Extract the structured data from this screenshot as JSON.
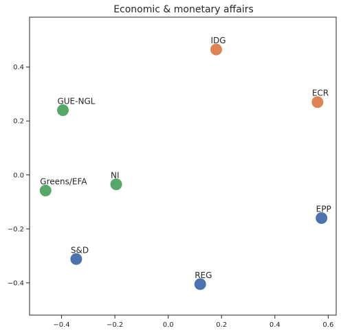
{
  "chart_data": {
    "type": "scatter",
    "title": "Economic & monetary affairs",
    "xlabel": "",
    "ylabel": "",
    "xlim": [
      -0.52,
      0.63
    ],
    "ylim": [
      -0.52,
      0.585
    ],
    "grid": false,
    "legend": "none",
    "xticks": [
      -0.4,
      -0.2,
      0.0,
      0.2,
      0.4,
      0.6
    ],
    "xtick_labels": [
      "−0.4",
      "−0.2",
      "0.0",
      "0.2",
      "0.4",
      "0.6"
    ],
    "yticks": [
      -0.4,
      -0.2,
      0.0,
      0.2,
      0.4
    ],
    "ytick_labels": [
      "−0.4",
      "−0.2",
      "0.0",
      "0.2",
      "0.4"
    ],
    "colors": {
      "blue": "#4c72b0",
      "orange": "#dd8452",
      "green": "#55a868"
    },
    "points": [
      {
        "label": "IDG",
        "x": 0.18,
        "y": 0.465,
        "color": "orange"
      },
      {
        "label": "ECR",
        "x": 0.56,
        "y": 0.27,
        "color": "orange"
      },
      {
        "label": "GUE-NGL",
        "x": -0.395,
        "y": 0.24,
        "color": "green"
      },
      {
        "label": "NI",
        "x": -0.195,
        "y": -0.035,
        "color": "green"
      },
      {
        "label": "Greens/EFA",
        "x": -0.46,
        "y": -0.058,
        "color": "green"
      },
      {
        "label": "EPP",
        "x": 0.575,
        "y": -0.16,
        "color": "blue"
      },
      {
        "label": "S&D",
        "x": -0.345,
        "y": -0.312,
        "color": "blue"
      },
      {
        "label": "REG",
        "x": 0.12,
        "y": -0.405,
        "color": "blue"
      }
    ]
  }
}
